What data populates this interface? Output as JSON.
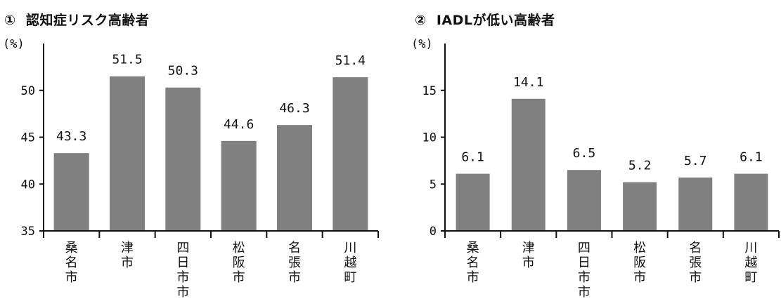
{
  "charts": [
    {
      "title_num": "①",
      "title": "認知症リスク高齢者"
    },
    {
      "title_num": "②",
      "title": "IADLが低い高齢者"
    }
  ],
  "chart_data": [
    {
      "type": "bar",
      "title": "① 認知症リスク高齢者",
      "ylabel": "(%)",
      "categories": [
        "桑名市",
        "津市",
        "四日市市",
        "松阪市",
        "名張市",
        "川越町"
      ],
      "values": [
        43.3,
        51.5,
        50.3,
        44.6,
        46.3,
        51.4
      ],
      "value_labels": [
        "43.3",
        "51.5",
        "50.3",
        "44.6",
        "46.3",
        "51.4"
      ],
      "ylim": [
        35,
        55
      ],
      "yticks": [
        35,
        40,
        45,
        50
      ],
      "grid": false,
      "bar_color": "#808080"
    },
    {
      "type": "bar",
      "title": "② IADLが低い高齢者",
      "ylabel": "(%)",
      "categories": [
        "桑名市",
        "津市",
        "四日市市",
        "松阪市",
        "名張市",
        "川越町"
      ],
      "values": [
        6.1,
        14.1,
        6.5,
        5.2,
        5.7,
        6.1
      ],
      "value_labels": [
        "6.1",
        "14.1",
        "6.5",
        "5.2",
        "5.7",
        "6.1"
      ],
      "ylim": [
        0,
        20
      ],
      "yticks": [
        0,
        5,
        10,
        15
      ],
      "grid": false,
      "bar_color": "#808080"
    }
  ]
}
